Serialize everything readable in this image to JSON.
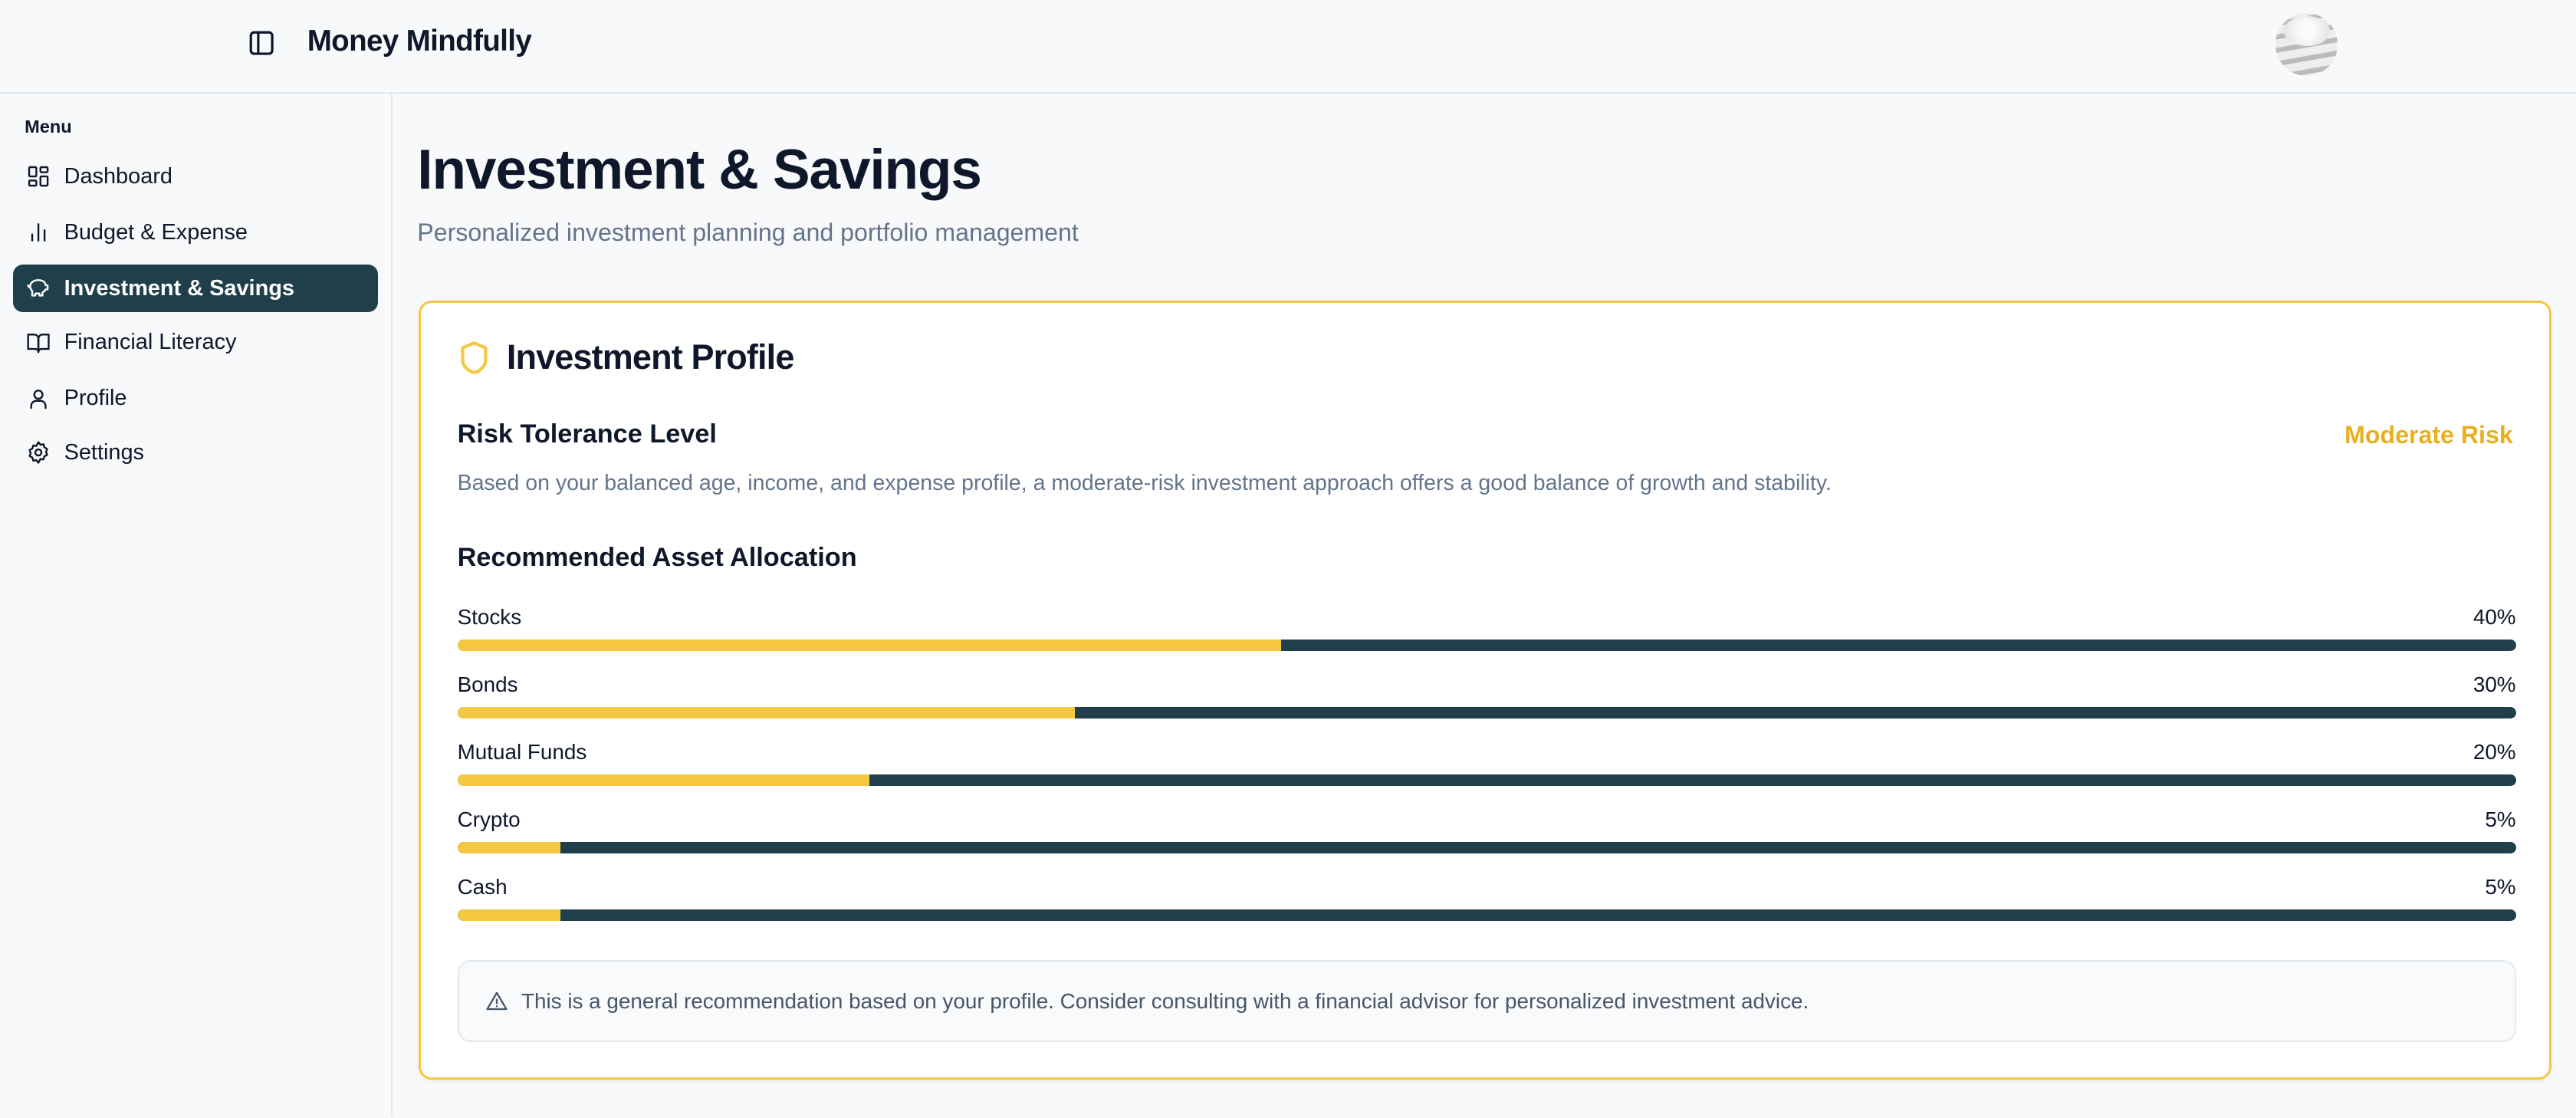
{
  "header": {
    "app_title": "Money Mindfully"
  },
  "sidebar": {
    "menu_label": "Menu",
    "items": [
      {
        "label": "Dashboard",
        "icon": "layout-dashboard-icon"
      },
      {
        "label": "Budget & Expense",
        "icon": "bar-chart-icon"
      },
      {
        "label": "Investment & Savings",
        "icon": "piggy-bank-icon",
        "active": true
      },
      {
        "label": "Financial Literacy",
        "icon": "book-open-icon"
      },
      {
        "label": "Profile",
        "icon": "user-icon"
      },
      {
        "label": "Settings",
        "icon": "gear-icon"
      }
    ]
  },
  "main": {
    "title": "Investment & Savings",
    "subtitle": "Personalized investment planning and portfolio management",
    "card": {
      "title": "Investment Profile",
      "risk_title": "Risk Tolerance Level",
      "risk_level": "Moderate Risk",
      "risk_description": "Based on your balanced age, income, and expense profile, a moderate-risk investment approach offers a good balance of growth and stability.",
      "allocation_title": "Recommended Asset Allocation",
      "allocations": [
        {
          "label": "Stocks",
          "percent": 40,
          "percent_label": "40%"
        },
        {
          "label": "Bonds",
          "percent": 30,
          "percent_label": "30%"
        },
        {
          "label": "Mutual Funds",
          "percent": 20,
          "percent_label": "20%"
        },
        {
          "label": "Crypto",
          "percent": 5,
          "percent_label": "5%"
        },
        {
          "label": "Cash",
          "percent": 5,
          "percent_label": "5%"
        }
      ],
      "notice": "This is a general recommendation based on your profile. Consider consulting with a financial advisor for personalized investment advice."
    }
  },
  "colors": {
    "accent": "#f5c842",
    "primary": "#1f3f4a",
    "risk": "#e8b021"
  }
}
